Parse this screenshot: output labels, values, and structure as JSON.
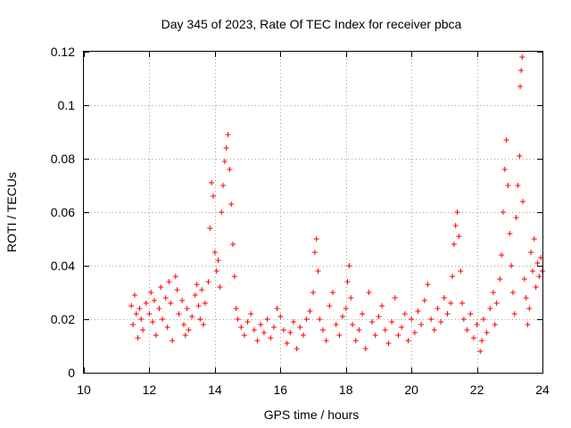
{
  "chart_data": {
    "type": "scatter",
    "title": "Day 345 of 2023, Rate Of TEC Index for receiver pbca",
    "xlabel": "GPS time / hours",
    "ylabel": "ROTI / TECUs",
    "xlim": [
      10,
      24
    ],
    "ylim": [
      0,
      0.12
    ],
    "xticks": [
      10,
      12,
      14,
      16,
      18,
      20,
      22,
      24
    ],
    "yticks": [
      0,
      0.02,
      0.04,
      0.06,
      0.08,
      0.1,
      0.12
    ],
    "xtick_labels": [
      "10",
      "12",
      "14",
      "16",
      "18",
      "20",
      "22",
      "24"
    ],
    "ytick_labels": [
      "0",
      "0.02",
      "0.04",
      "0.06",
      "0.08",
      "0.1",
      "0.12"
    ],
    "grid": true,
    "marker": "+",
    "color": "#ff0000",
    "series": [
      {
        "name": "ROTI",
        "points": [
          [
            11.45,
            0.025
          ],
          [
            11.5,
            0.018
          ],
          [
            11.55,
            0.029
          ],
          [
            11.6,
            0.022
          ],
          [
            11.65,
            0.013
          ],
          [
            11.7,
            0.024
          ],
          [
            11.75,
            0.02
          ],
          [
            11.8,
            0.016
          ],
          [
            11.9,
            0.026
          ],
          [
            12.0,
            0.022
          ],
          [
            12.05,
            0.03
          ],
          [
            12.1,
            0.019
          ],
          [
            12.15,
            0.027
          ],
          [
            12.2,
            0.014
          ],
          [
            12.3,
            0.024
          ],
          [
            12.35,
            0.032
          ],
          [
            12.4,
            0.02
          ],
          [
            12.5,
            0.028
          ],
          [
            12.55,
            0.017
          ],
          [
            12.6,
            0.034
          ],
          [
            12.65,
            0.026
          ],
          [
            12.7,
            0.012
          ],
          [
            12.8,
            0.036
          ],
          [
            12.85,
            0.031
          ],
          [
            12.9,
            0.022
          ],
          [
            13.0,
            0.027
          ],
          [
            13.05,
            0.018
          ],
          [
            13.1,
            0.014
          ],
          [
            13.15,
            0.024
          ],
          [
            13.2,
            0.016
          ],
          [
            13.3,
            0.021
          ],
          [
            13.4,
            0.029
          ],
          [
            13.45,
            0.033
          ],
          [
            13.5,
            0.025
          ],
          [
            13.55,
            0.02
          ],
          [
            13.6,
            0.031
          ],
          [
            13.65,
            0.018
          ],
          [
            13.7,
            0.026
          ],
          [
            13.8,
            0.034
          ],
          [
            13.85,
            0.054
          ],
          [
            13.9,
            0.071
          ],
          [
            13.95,
            0.066
          ],
          [
            14.0,
            0.045
          ],
          [
            14.05,
            0.038
          ],
          [
            14.1,
            0.042
          ],
          [
            14.15,
            0.032
          ],
          [
            14.2,
            0.06
          ],
          [
            14.25,
            0.07
          ],
          [
            14.3,
            0.079
          ],
          [
            14.35,
            0.084
          ],
          [
            14.4,
            0.089
          ],
          [
            14.45,
            0.076
          ],
          [
            14.5,
            0.063
          ],
          [
            14.55,
            0.048
          ],
          [
            14.6,
            0.036
          ],
          [
            14.65,
            0.024
          ],
          [
            14.7,
            0.02
          ],
          [
            14.8,
            0.017
          ],
          [
            14.9,
            0.014
          ],
          [
            15.0,
            0.019
          ],
          [
            15.1,
            0.022
          ],
          [
            15.2,
            0.016
          ],
          [
            15.3,
            0.012
          ],
          [
            15.4,
            0.018
          ],
          [
            15.5,
            0.015
          ],
          [
            15.6,
            0.02
          ],
          [
            15.7,
            0.013
          ],
          [
            15.8,
            0.017
          ],
          [
            15.9,
            0.024
          ],
          [
            16.0,
            0.021
          ],
          [
            16.1,
            0.016
          ],
          [
            16.2,
            0.011
          ],
          [
            16.3,
            0.015
          ],
          [
            16.4,
            0.019
          ],
          [
            16.5,
            0.009
          ],
          [
            16.6,
            0.017
          ],
          [
            16.7,
            0.014
          ],
          [
            16.8,
            0.02
          ],
          [
            16.9,
            0.023
          ],
          [
            17.0,
            0.03
          ],
          [
            17.05,
            0.045
          ],
          [
            17.1,
            0.05
          ],
          [
            17.15,
            0.038
          ],
          [
            17.2,
            0.02
          ],
          [
            17.3,
            0.016
          ],
          [
            17.4,
            0.012
          ],
          [
            17.5,
            0.025
          ],
          [
            17.6,
            0.03
          ],
          [
            17.7,
            0.018
          ],
          [
            17.8,
            0.014
          ],
          [
            17.9,
            0.021
          ],
          [
            18.0,
            0.024
          ],
          [
            18.05,
            0.034
          ],
          [
            18.1,
            0.04
          ],
          [
            18.15,
            0.028
          ],
          [
            18.2,
            0.018
          ],
          [
            18.3,
            0.012
          ],
          [
            18.4,
            0.016
          ],
          [
            18.5,
            0.022
          ],
          [
            18.6,
            0.009
          ],
          [
            18.7,
            0.03
          ],
          [
            18.8,
            0.019
          ],
          [
            18.9,
            0.014
          ],
          [
            19.0,
            0.021
          ],
          [
            19.1,
            0.025
          ],
          [
            19.2,
            0.016
          ],
          [
            19.3,
            0.011
          ],
          [
            19.4,
            0.019
          ],
          [
            19.5,
            0.028
          ],
          [
            19.6,
            0.014
          ],
          [
            19.7,
            0.017
          ],
          [
            19.8,
            0.022
          ],
          [
            19.9,
            0.012
          ],
          [
            20.0,
            0.02
          ],
          [
            20.1,
            0.015
          ],
          [
            20.2,
            0.023
          ],
          [
            20.3,
            0.018
          ],
          [
            20.4,
            0.027
          ],
          [
            20.5,
            0.033
          ],
          [
            20.6,
            0.02
          ],
          [
            20.7,
            0.016
          ],
          [
            20.8,
            0.024
          ],
          [
            20.9,
            0.019
          ],
          [
            21.0,
            0.028
          ],
          [
            21.1,
            0.022
          ],
          [
            21.2,
            0.026
          ],
          [
            21.25,
            0.036
          ],
          [
            21.3,
            0.048
          ],
          [
            21.35,
            0.055
          ],
          [
            21.4,
            0.06
          ],
          [
            21.45,
            0.051
          ],
          [
            21.5,
            0.038
          ],
          [
            21.55,
            0.026
          ],
          [
            21.6,
            0.02
          ],
          [
            21.7,
            0.016
          ],
          [
            21.8,
            0.022
          ],
          [
            21.9,
            0.013
          ],
          [
            22.0,
            0.018
          ],
          [
            22.1,
            0.008
          ],
          [
            22.15,
            0.012
          ],
          [
            22.2,
            0.02
          ],
          [
            22.3,
            0.015
          ],
          [
            22.4,
            0.024
          ],
          [
            22.5,
            0.03
          ],
          [
            22.55,
            0.018
          ],
          [
            22.6,
            0.026
          ],
          [
            22.7,
            0.035
          ],
          [
            22.75,
            0.044
          ],
          [
            22.8,
            0.06
          ],
          [
            22.85,
            0.076
          ],
          [
            22.9,
            0.087
          ],
          [
            22.95,
            0.07
          ],
          [
            23.0,
            0.052
          ],
          [
            23.05,
            0.04
          ],
          [
            23.1,
            0.03
          ],
          [
            23.15,
            0.022
          ],
          [
            23.2,
            0.058
          ],
          [
            23.25,
            0.07
          ],
          [
            23.3,
            0.081
          ],
          [
            23.32,
            0.107
          ],
          [
            23.35,
            0.113
          ],
          [
            23.38,
            0.118
          ],
          [
            23.4,
            0.064
          ],
          [
            23.45,
            0.035
          ],
          [
            23.5,
            0.028
          ],
          [
            23.55,
            0.018
          ],
          [
            23.6,
            0.024
          ],
          [
            23.65,
            0.045
          ],
          [
            23.7,
            0.038
          ],
          [
            23.75,
            0.05
          ],
          [
            23.8,
            0.032
          ],
          [
            23.85,
            0.041
          ],
          [
            23.9,
            0.036
          ],
          [
            23.95,
            0.043
          ],
          [
            24.0,
            0.038
          ]
        ]
      }
    ]
  }
}
